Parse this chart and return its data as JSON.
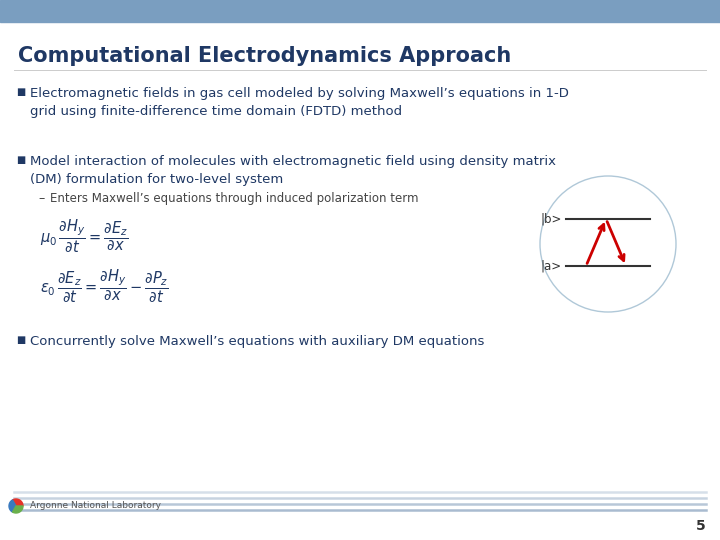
{
  "title": "Computational Electrodynamics Approach",
  "title_color": "#1f3864",
  "title_fontsize": 15,
  "bg_color": "#ffffff",
  "header_band_color": "#7a9ec0",
  "bullet1": "Electromagnetic fields in gas cell modeled by solving Maxwell’s equations in 1-D\ngrid using finite-difference time domain (FDTD) method",
  "bullet2": "Model interaction of molecules with electromagnetic field using density matrix\n(DM) formulation for two-level system",
  "subbullet": "Enters Maxwell’s equations through induced polarization term",
  "bullet3": "Concurrently solve Maxwell’s equations with auxiliary DM equations",
  "footer_text": "Argonne National Laboratory",
  "page_number": "5",
  "bullet_color": "#1f3864",
  "body_color": "#1f3864",
  "sub_color": "#444444",
  "eq_color": "#1f3864",
  "level_b_label": "|b>",
  "level_a_label": "|a>",
  "arrow_color": "#cc0000",
  "circle_color": "#b0c8d8",
  "line_color": "#333333"
}
